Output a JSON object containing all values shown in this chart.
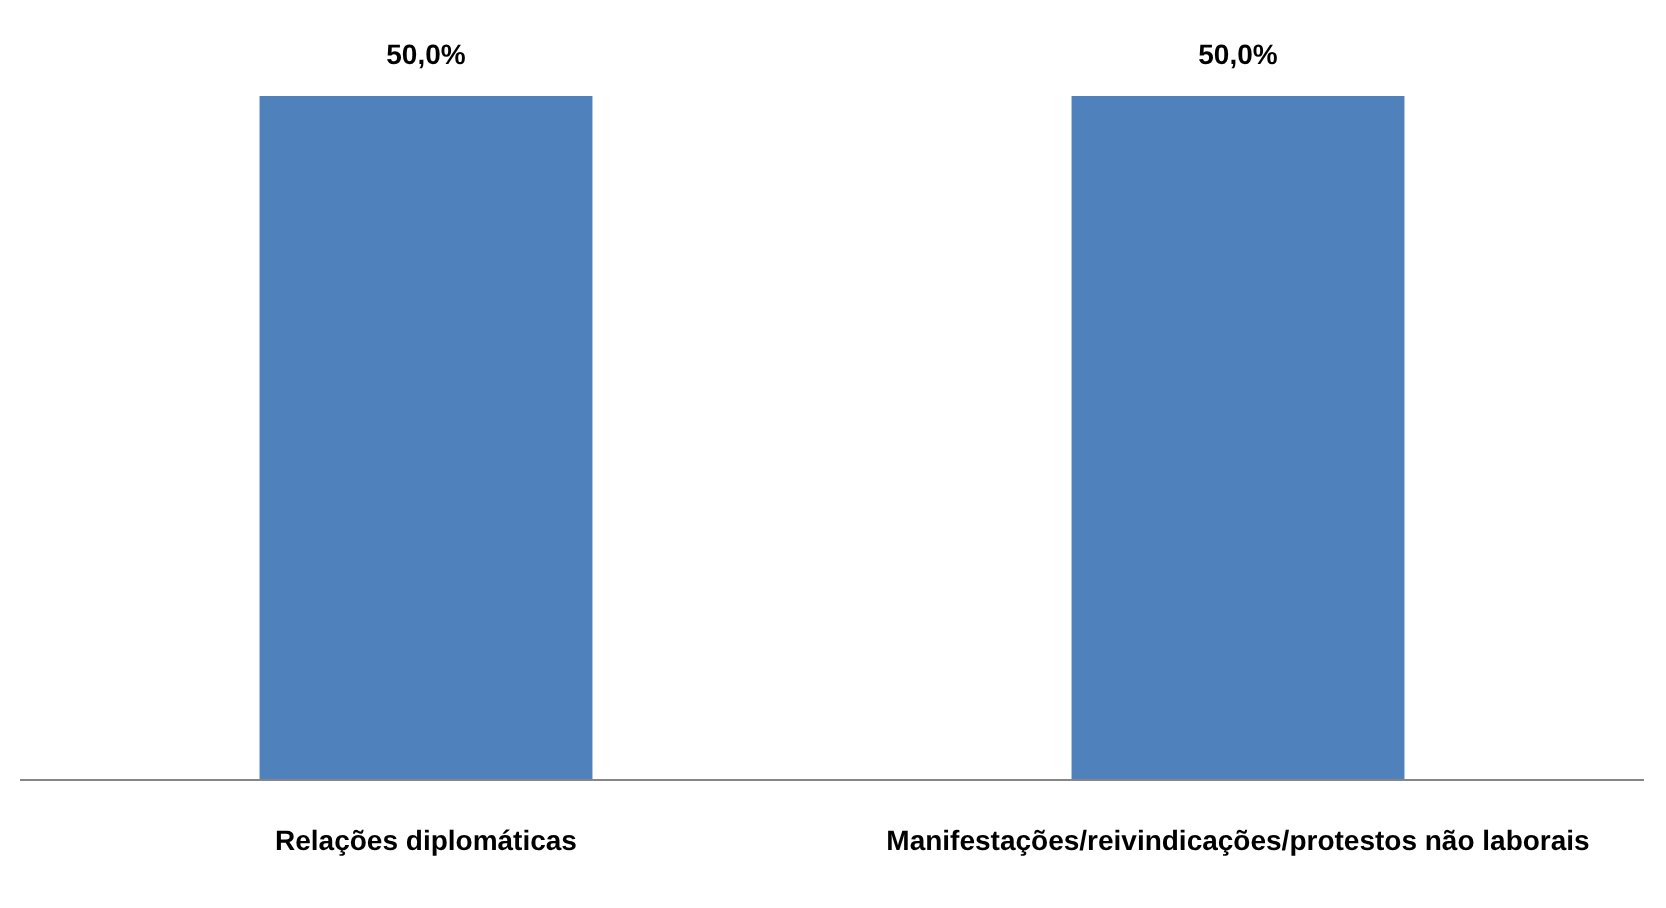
{
  "chart_data": {
    "type": "bar",
    "categories": [
      "Relações diplomáticas",
      "Manifestações/reivindicações/protestos não laborais"
    ],
    "values": [
      50,
      50
    ],
    "value_labels": [
      "50,0%",
      "50,0%"
    ],
    "color": "#4f81bd"
  }
}
